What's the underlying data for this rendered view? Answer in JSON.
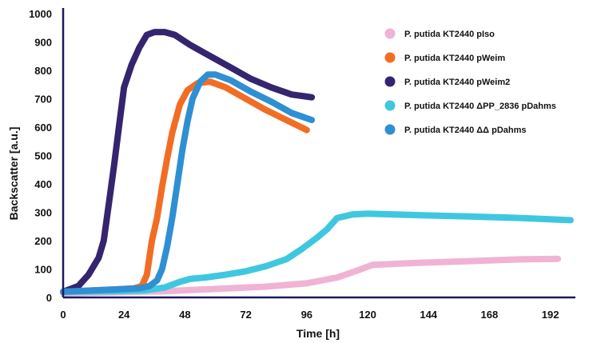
{
  "chart_data": {
    "type": "line",
    "title": "",
    "xlabel": "Time [h]",
    "ylabel": "Backscatter [a.u.]",
    "xlim": [
      0,
      200
    ],
    "ylim": [
      0,
      1000
    ],
    "x_ticks": [
      0,
      24,
      48,
      72,
      96,
      120,
      144,
      168,
      192
    ],
    "y_ticks": [
      0,
      100,
      200,
      300,
      400,
      500,
      600,
      700,
      800,
      900,
      1000
    ],
    "grid": false,
    "legend_position": "top-right",
    "axis_color": "#1e1a5e",
    "series": [
      {
        "name": "P. putida KT2440 pIso",
        "color": "#f0b3d4",
        "points": [
          [
            0,
            15
          ],
          [
            20,
            18
          ],
          [
            40,
            22
          ],
          [
            60,
            30
          ],
          [
            80,
            38
          ],
          [
            96,
            50
          ],
          [
            108,
            70
          ],
          [
            116,
            95
          ],
          [
            122,
            115
          ],
          [
            140,
            122
          ],
          [
            160,
            128
          ],
          [
            180,
            134
          ],
          [
            195,
            136
          ]
        ]
      },
      {
        "name": "P. putida KT2440 pWeim",
        "color": "#f26d24",
        "points": [
          [
            0,
            20
          ],
          [
            10,
            24
          ],
          [
            20,
            28
          ],
          [
            28,
            32
          ],
          [
            31,
            40
          ],
          [
            33,
            80
          ],
          [
            35,
            200
          ],
          [
            37,
            280
          ],
          [
            39,
            390
          ],
          [
            41,
            490
          ],
          [
            43,
            580
          ],
          [
            46,
            680
          ],
          [
            49,
            730
          ],
          [
            53,
            755
          ],
          [
            58,
            760
          ],
          [
            64,
            740
          ],
          [
            72,
            700
          ],
          [
            80,
            660
          ],
          [
            88,
            625
          ],
          [
            96,
            590
          ]
        ]
      },
      {
        "name": "P. putida KT2440 pWeim2",
        "color": "#35246e",
        "points": [
          [
            0,
            20
          ],
          [
            6,
            40
          ],
          [
            10,
            80
          ],
          [
            14,
            140
          ],
          [
            16,
            200
          ],
          [
            18,
            330
          ],
          [
            20,
            460
          ],
          [
            22,
            600
          ],
          [
            24,
            740
          ],
          [
            27,
            820
          ],
          [
            30,
            880
          ],
          [
            33,
            925
          ],
          [
            36,
            935
          ],
          [
            40,
            935
          ],
          [
            44,
            925
          ],
          [
            50,
            890
          ],
          [
            58,
            850
          ],
          [
            66,
            810
          ],
          [
            74,
            770
          ],
          [
            82,
            740
          ],
          [
            90,
            715
          ],
          [
            98,
            705
          ]
        ]
      },
      {
        "name": "P. putida KT2440 ΔPP_2836 pDahms",
        "color": "#3fc7e0",
        "points": [
          [
            0,
            20
          ],
          [
            20,
            22
          ],
          [
            32,
            25
          ],
          [
            40,
            35
          ],
          [
            46,
            55
          ],
          [
            50,
            65
          ],
          [
            56,
            70
          ],
          [
            64,
            80
          ],
          [
            72,
            92
          ],
          [
            80,
            110
          ],
          [
            88,
            135
          ],
          [
            94,
            170
          ],
          [
            100,
            210
          ],
          [
            104,
            240
          ],
          [
            108,
            280
          ],
          [
            114,
            292
          ],
          [
            120,
            295
          ],
          [
            140,
            290
          ],
          [
            160,
            285
          ],
          [
            180,
            280
          ],
          [
            200,
            272
          ]
        ]
      },
      {
        "name": "P. putida KT2440 ΔΔ pDahms",
        "color": "#2f8fd3",
        "points": [
          [
            0,
            20
          ],
          [
            10,
            24
          ],
          [
            20,
            28
          ],
          [
            30,
            32
          ],
          [
            34,
            40
          ],
          [
            37,
            60
          ],
          [
            39,
            100
          ],
          [
            41,
            180
          ],
          [
            43,
            280
          ],
          [
            45,
            400
          ],
          [
            47,
            520
          ],
          [
            49,
            620
          ],
          [
            51,
            700
          ],
          [
            54,
            760
          ],
          [
            57,
            785
          ],
          [
            60,
            785
          ],
          [
            66,
            765
          ],
          [
            74,
            725
          ],
          [
            82,
            690
          ],
          [
            90,
            650
          ],
          [
            98,
            625
          ]
        ]
      }
    ]
  }
}
